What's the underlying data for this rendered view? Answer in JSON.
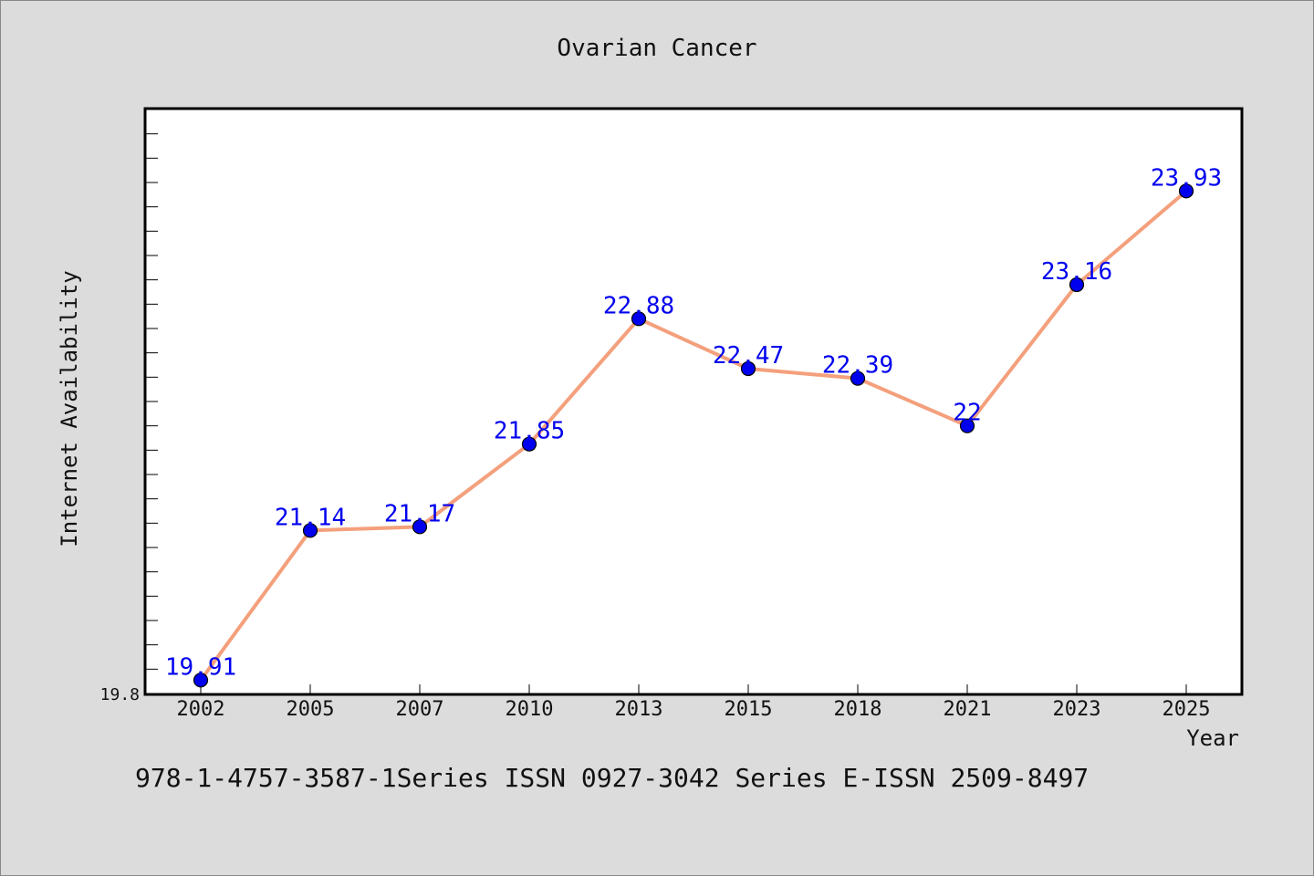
{
  "chart_data": {
    "type": "line",
    "title": "Ovarian Cancer",
    "xlabel": "Year",
    "ylabel": "Internet Availability",
    "categories": [
      "2002",
      "2005",
      "2007",
      "2010",
      "2013",
      "2015",
      "2018",
      "2021",
      "2023",
      "2025"
    ],
    "series": [
      {
        "values": [
          19.91,
          21.14,
          21.17,
          21.85,
          22.88,
          22.47,
          22.39,
          22,
          23.16,
          23.93
        ],
        "data_labels": [
          "19.91",
          "21.14",
          "21.17",
          "21.85",
          "22.88",
          "22.47",
          "22.39",
          "22",
          "23.16",
          "23.93"
        ]
      }
    ],
    "y_tick_labels": [
      "19.8"
    ],
    "ylim": [
      19.8,
      24.6
    ],
    "grid": false,
    "line_color": "#f4a07c",
    "marker_color": "#0000ee"
  },
  "footer": "978-1-4757-3587-1Series ISSN 0927-3042 Series E-ISSN 2509-8497"
}
